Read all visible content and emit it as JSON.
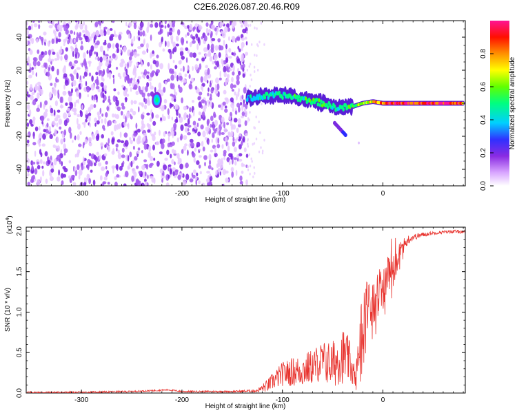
{
  "title": "C2E6.2026.087.20.46.R09",
  "chart_data": [
    {
      "type": "heatmap",
      "title": "C2E6.2026.087.20.46.R09",
      "xlabel": "Height of straight line (km)",
      "ylabel": "Frequency (Hz)",
      "xlim": [
        -355,
        82
      ],
      "ylim": [
        -50,
        50
      ],
      "x_ticks": [
        -300,
        -200,
        -100,
        0
      ],
      "y_ticks": [
        -40,
        -20,
        0,
        20,
        40
      ],
      "x_tick_labels": [
        "-300",
        "-200",
        "-100",
        "0"
      ],
      "y_tick_labels": [
        "-40",
        "-20",
        "0",
        "20",
        "40"
      ],
      "colorbar": {
        "label": "Normalized spectral amplitude",
        "range": [
          0,
          1
        ],
        "ticks": [
          0.0,
          0.2,
          0.4,
          0.6,
          0.8
        ],
        "tick_labels": [
          "0.0",
          "0.2",
          "0.4",
          "0.6",
          "0.8"
        ],
        "colors": [
          "#ffffff",
          "#e6b3ff",
          "#8a2be2",
          "#2020ff",
          "#00e5ff",
          "#00ff40",
          "#ffff00",
          "#ff8000",
          "#ff0000",
          "#ff1493"
        ]
      },
      "noise_region_x": [
        -355,
        -135
      ],
      "signal_trace": [
        {
          "x": -225,
          "f": 2,
          "amp": 0.45
        },
        {
          "x": -135,
          "f": 3,
          "amp": 0.35
        },
        {
          "x": -120,
          "f": 4,
          "amp": 0.4
        },
        {
          "x": -105,
          "f": 5,
          "amp": 0.45
        },
        {
          "x": -90,
          "f": 4,
          "amp": 0.45
        },
        {
          "x": -75,
          "f": 2,
          "amp": 0.5
        },
        {
          "x": -60,
          "f": 0,
          "amp": 0.5
        },
        {
          "x": -45,
          "f": -3,
          "amp": 0.45
        },
        {
          "x": -40,
          "f": -18,
          "amp": 0.2
        },
        {
          "x": -30,
          "f": -2,
          "amp": 0.5
        },
        {
          "x": -20,
          "f": 0,
          "amp": 0.6
        },
        {
          "x": -10,
          "f": 1,
          "amp": 0.75
        },
        {
          "x": 0,
          "f": 0,
          "amp": 0.85
        },
        {
          "x": 20,
          "f": 0,
          "amp": 0.95
        },
        {
          "x": 40,
          "f": 0,
          "amp": 0.95
        },
        {
          "x": 60,
          "f": 0,
          "amp": 0.95
        },
        {
          "x": 80,
          "f": 0,
          "amp": 0.9
        }
      ]
    },
    {
      "type": "line",
      "xlabel": "Height of straight line (km)",
      "ylabel": "SNR (10 * v/v)",
      "y_multiplier": "(x10",
      "y_multiplier_exp": "4",
      "y_multiplier_close": ")",
      "xlim": [
        -355,
        82
      ],
      "ylim": [
        0,
        2.05
      ],
      "x_ticks": [
        -300,
        -200,
        -100,
        0
      ],
      "y_ticks": [
        0.0,
        0.5,
        1.0,
        1.5,
        2.0
      ],
      "x_tick_labels": [
        "-300",
        "-200",
        "-100",
        "0"
      ],
      "y_tick_labels": [
        "0.0",
        "0.5",
        "1.0",
        "1.5",
        "2.0"
      ],
      "line_color": "#e8332e",
      "series": [
        {
          "name": "SNR",
          "x": [
            -355,
            -300,
            -250,
            -213,
            -200,
            -150,
            -125,
            -115,
            -100,
            -90,
            -80,
            -70,
            -60,
            -50,
            -45,
            -40,
            -35,
            -30,
            -27,
            -24,
            -20,
            -15,
            -10,
            -5,
            0,
            5,
            10,
            15,
            20,
            25,
            30,
            40,
            50,
            60,
            70,
            82
          ],
          "y": [
            0.01,
            0.01,
            0.02,
            0.04,
            0.02,
            0.02,
            0.03,
            0.1,
            0.25,
            0.28,
            0.3,
            0.35,
            0.42,
            0.38,
            0.45,
            0.5,
            0.45,
            0.3,
            0.15,
            0.6,
            0.95,
            1.2,
            1.15,
            1.25,
            1.3,
            1.55,
            1.5,
            1.7,
            1.82,
            1.9,
            1.93,
            1.96,
            1.98,
            1.99,
            2.0,
            1.99
          ],
          "noise_amp": [
            0.01,
            0.01,
            0.01,
            0.01,
            0.01,
            0.01,
            0.02,
            0.08,
            0.15,
            0.18,
            0.2,
            0.22,
            0.25,
            0.3,
            0.32,
            0.35,
            0.3,
            0.2,
            0.12,
            0.35,
            0.4,
            0.35,
            0.3,
            0.3,
            0.28,
            0.25,
            0.2,
            0.15,
            0.1,
            0.06,
            0.04,
            0.03,
            0.02,
            0.02,
            0.02,
            0.02
          ]
        }
      ]
    }
  ]
}
